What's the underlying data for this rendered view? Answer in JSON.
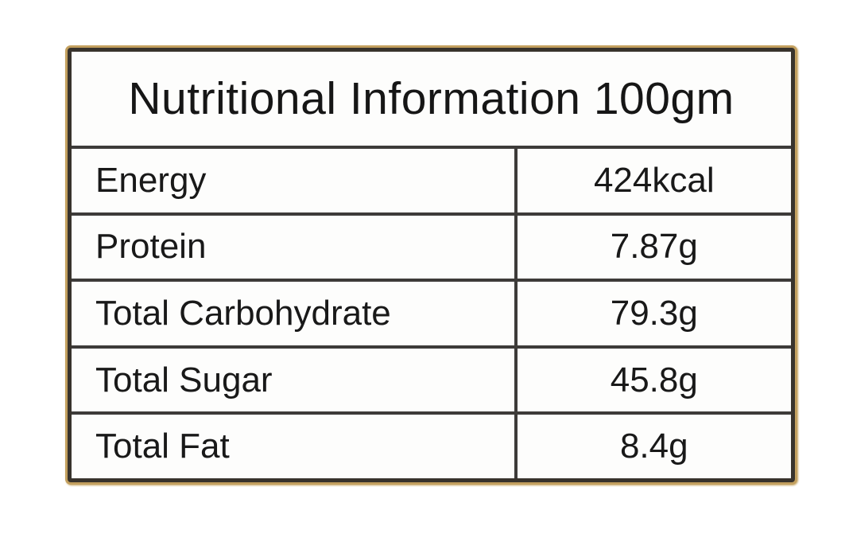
{
  "table": {
    "title": "Nutritional Information 100gm",
    "rows": [
      {
        "label": "Energy",
        "value": "424kcal"
      },
      {
        "label": "Protein",
        "value": "7.87g"
      },
      {
        "label": "Total Carbohydrate",
        "value": "79.3g"
      },
      {
        "label": "Total Sugar",
        "value": "45.8g"
      },
      {
        "label": "Total Fat",
        "value": "8.4g"
      }
    ],
    "colors": {
      "outer_edge_tan": "#c3a05f",
      "border_dark": "#3d3b39",
      "text": "#191919",
      "background": "#fdfdfc"
    }
  }
}
